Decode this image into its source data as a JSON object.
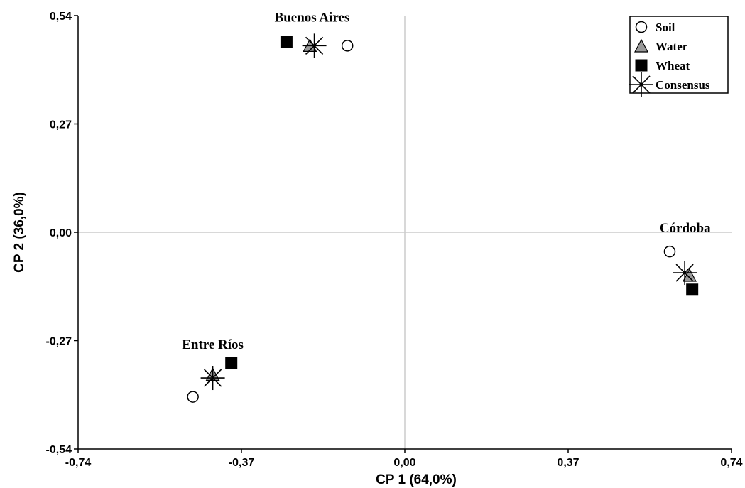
{
  "chart_data": {
    "type": "scatter",
    "xlabel": "CP 1 (64,0%)",
    "ylabel": "CP 2 (36,0%)",
    "xlim": [
      -0.74,
      0.74
    ],
    "ylim": [
      -0.54,
      0.54
    ],
    "x_ticks": [
      {
        "value": -0.74,
        "label": "-0,74"
      },
      {
        "value": -0.37,
        "label": "-0,37"
      },
      {
        "value": 0.0,
        "label": "0,00"
      },
      {
        "value": 0.37,
        "label": "0,37"
      },
      {
        "value": 0.74,
        "label": "0,74"
      }
    ],
    "y_ticks": [
      {
        "value": 0.54,
        "label": "0,54"
      },
      {
        "value": 0.27,
        "label": "0,27"
      },
      {
        "value": 0.0,
        "label": "0,00"
      },
      {
        "value": -0.27,
        "label": "-0,27"
      },
      {
        "value": -0.54,
        "label": "-0,54"
      }
    ],
    "zero_lines": true,
    "grid": false,
    "legend_position": "top-right",
    "series": [
      {
        "name": "Soil",
        "marker": "circle",
        "color": "#ffffff",
        "points": [
          {
            "x": -0.13,
            "y": 0.465
          },
          {
            "x": 0.6,
            "y": -0.048
          },
          {
            "x": -0.48,
            "y": -0.41
          }
        ]
      },
      {
        "name": "Water",
        "marker": "triangle",
        "color": "#999999",
        "points": [
          {
            "x": -0.215,
            "y": 0.465
          },
          {
            "x": 0.645,
            "y": -0.108
          },
          {
            "x": -0.435,
            "y": -0.355
          }
        ]
      },
      {
        "name": "Wheat",
        "marker": "square",
        "color": "#000000",
        "points": [
          {
            "x": -0.268,
            "y": 0.474
          },
          {
            "x": 0.651,
            "y": -0.143
          },
          {
            "x": -0.393,
            "y": -0.325
          }
        ]
      },
      {
        "name": "Consensus",
        "marker": "asterisk",
        "color": "#000000",
        "points": [
          {
            "x": -0.205,
            "y": 0.465
          },
          {
            "x": 0.634,
            "y": -0.101
          },
          {
            "x": -0.435,
            "y": -0.363
          }
        ]
      }
    ],
    "annotations": [
      {
        "text": "Buenos Aires",
        "x": -0.21,
        "y": 0.525
      },
      {
        "text": "Córdoba",
        "x": 0.635,
        "y": 0.0
      },
      {
        "text": "Entre Ríos",
        "x": -0.435,
        "y": -0.29
      }
    ]
  }
}
